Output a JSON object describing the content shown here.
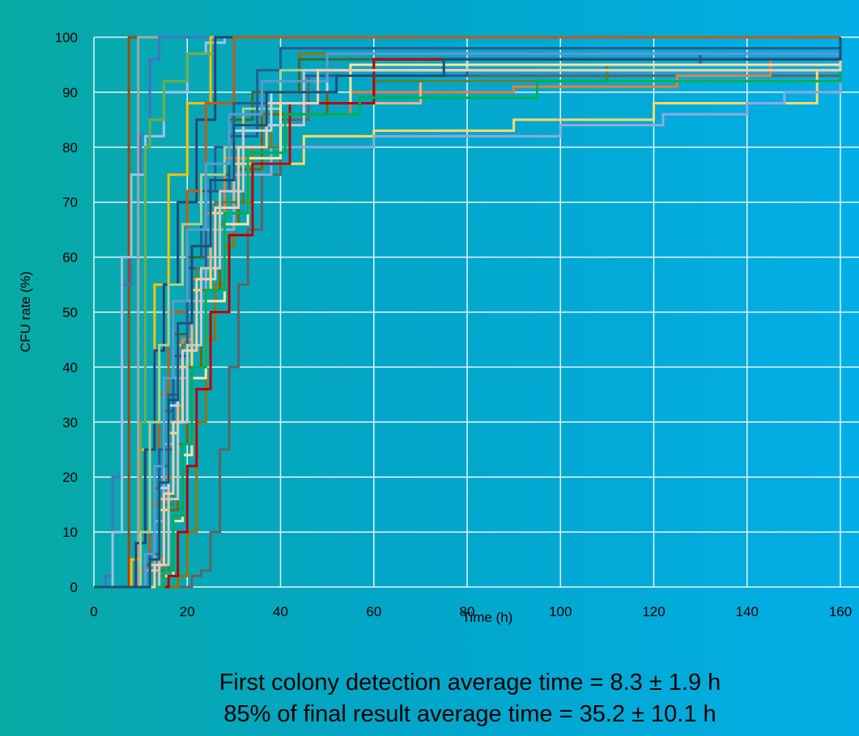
{
  "chart_data": {
    "type": "line",
    "title": "",
    "xlabel": "Time (h)",
    "ylabel": "CFU rate (%)",
    "xlim": [
      0,
      160
    ],
    "ylim": [
      0,
      100
    ],
    "xticks": [
      0,
      20,
      40,
      60,
      80,
      100,
      120,
      140,
      160
    ],
    "yticks": [
      0,
      10,
      20,
      30,
      40,
      50,
      60,
      70,
      80,
      90,
      100
    ],
    "xtick_labels": [
      "0",
      "20",
      "40",
      "60",
      "80",
      "100",
      "120",
      "140",
      "160"
    ],
    "ytick_labels": [
      "0",
      "10",
      "20",
      "30",
      "40",
      "50",
      "60",
      "70",
      "80",
      "90",
      "100"
    ],
    "grid": true,
    "legend": "none",
    "series": [
      {
        "color": "#9e480e",
        "x": [
          0,
          7,
          7.5,
          160
        ],
        "y": [
          0,
          0,
          100,
          100
        ]
      },
      {
        "color": "#a5a5a5",
        "x": [
          0,
          9,
          9.5,
          160
        ],
        "y": [
          0,
          0,
          100,
          100
        ]
      },
      {
        "color": "#4472c4",
        "x": [
          0,
          2.5,
          4,
          6,
          8,
          10,
          12,
          14,
          160
        ],
        "y": [
          0,
          2,
          20,
          55,
          75,
          82,
          96,
          100,
          100
        ]
      },
      {
        "color": "#9dc3e6",
        "x": [
          0,
          4,
          6,
          8,
          11,
          15,
          20,
          24,
          28,
          160
        ],
        "y": [
          0,
          10,
          60,
          75,
          82,
          90,
          97,
          99,
          100,
          100
        ]
      },
      {
        "color": "#ffc000",
        "x": [
          0,
          8,
          10,
          13,
          16,
          20,
          25,
          160
        ],
        "y": [
          0,
          5,
          25,
          55,
          75,
          88,
          100,
          100
        ]
      },
      {
        "color": "#70ad47",
        "x": [
          0,
          10,
          11,
          12,
          15,
          20,
          26,
          160
        ],
        "y": [
          0,
          30,
          80,
          85,
          92,
          97,
          100,
          100
        ]
      },
      {
        "color": "#264478",
        "x": [
          0,
          9,
          11,
          13,
          15,
          18,
          22,
          26,
          160
        ],
        "y": [
          0,
          8,
          25,
          43,
          55,
          70,
          85,
          100,
          100
        ]
      },
      {
        "color": "#c55a11",
        "x": [
          0,
          10,
          12,
          14,
          16,
          20,
          24,
          30,
          160
        ],
        "y": [
          0,
          3,
          15,
          35,
          50,
          72,
          88,
          100,
          100
        ]
      },
      {
        "color": "#636363",
        "x": [
          0,
          19,
          21,
          23,
          25,
          27,
          29,
          31,
          33,
          36,
          40,
          46,
          160
        ],
        "y": [
          0,
          0,
          2,
          3,
          10,
          25,
          40,
          55,
          65,
          75,
          85,
          93,
          100
        ]
      },
      {
        "color": "#997300",
        "x": [
          0,
          18,
          20,
          22,
          24,
          26,
          28,
          30,
          34,
          38,
          44,
          160
        ],
        "y": [
          0,
          2,
          10,
          30,
          45,
          55,
          62,
          70,
          80,
          90,
          97,
          100
        ]
      },
      {
        "color": "#255e91",
        "x": [
          0,
          12,
          14,
          16,
          18,
          20,
          23,
          26,
          30,
          35,
          40,
          160
        ],
        "y": [
          0,
          5,
          22,
          35,
          48,
          60,
          72,
          80,
          88,
          94,
          98,
          100
        ]
      },
      {
        "color": "#43682b",
        "x": [
          0,
          11,
          13,
          15,
          17,
          20,
          24,
          29,
          34,
          44,
          160
        ],
        "y": [
          0,
          4,
          18,
          32,
          46,
          60,
          75,
          85,
          90,
          96,
          100
        ]
      },
      {
        "color": "#ed7d31",
        "x": [
          0,
          13,
          15,
          17,
          19,
          21,
          24,
          28,
          36,
          55,
          90,
          125,
          145,
          160
        ],
        "y": [
          0,
          5,
          20,
          33,
          45,
          56,
          68,
          78,
          86,
          90,
          91,
          93,
          96,
          96
        ]
      },
      {
        "color": "#ffd966",
        "x": [
          0,
          12,
          14,
          16,
          18,
          21,
          25,
          30,
          45,
          60,
          90,
          120,
          155,
          160
        ],
        "y": [
          0,
          4,
          14,
          28,
          40,
          54,
          68,
          77,
          82,
          83,
          85,
          88,
          94,
          100
        ]
      },
      {
        "color": "#a9d18e",
        "x": [
          0,
          10,
          12,
          14,
          16,
          19,
          23,
          28,
          32,
          40,
          160
        ],
        "y": [
          0,
          10,
          30,
          44,
          55,
          66,
          75,
          80,
          87,
          94,
          100
        ]
      },
      {
        "color": "#8faadc",
        "x": [
          0,
          11,
          13,
          15,
          17,
          20,
          24,
          30,
          38,
          60,
          100,
          115,
          122,
          140,
          148,
          160
        ],
        "y": [
          0,
          3,
          12,
          26,
          38,
          52,
          65,
          75,
          80,
          82,
          84,
          84,
          86,
          88,
          90,
          100
        ]
      },
      {
        "color": "#f4b183",
        "x": [
          0,
          12,
          14,
          16,
          18,
          21,
          25,
          30,
          40,
          70,
          160
        ],
        "y": [
          0,
          3,
          16,
          30,
          44,
          58,
          70,
          80,
          88,
          92,
          100
        ]
      },
      {
        "color": "#2f5597",
        "x": [
          0,
          12,
          14,
          17,
          20,
          24,
          29,
          35,
          45,
          80,
          130,
          160
        ],
        "y": [
          0,
          6,
          25,
          42,
          58,
          72,
          82,
          88,
          93,
          95,
          97,
          100
        ]
      },
      {
        "color": "#7f6000",
        "x": [
          0,
          14,
          16,
          18,
          20,
          23,
          27,
          31,
          36,
          50,
          160
        ],
        "y": [
          0,
          3,
          14,
          26,
          40,
          54,
          66,
          76,
          86,
          94,
          100
        ]
      },
      {
        "color": "#548235",
        "x": [
          0,
          13,
          15,
          17,
          19,
          22,
          26,
          32,
          40,
          60,
          110,
          160
        ],
        "y": [
          0,
          2,
          15,
          30,
          44,
          58,
          70,
          80,
          88,
          92,
          95,
          100
        ]
      },
      {
        "color": "#bdd7ee",
        "x": [
          0,
          12,
          14,
          16,
          18,
          21,
          25,
          30,
          38,
          50,
          80,
          160
        ],
        "y": [
          0,
          5,
          18,
          33,
          48,
          62,
          74,
          83,
          90,
          94,
          96,
          100
        ]
      },
      {
        "color": "#ffe699",
        "x": [
          0,
          15,
          17,
          19,
          21,
          24,
          28,
          33,
          40,
          55,
          160
        ],
        "y": [
          0,
          2,
          12,
          24,
          38,
          52,
          66,
          78,
          88,
          95,
          100
        ]
      },
      {
        "color": "#c9c9c9",
        "x": [
          0,
          14,
          16,
          18,
          20,
          23,
          27,
          32,
          45,
          160
        ],
        "y": [
          0,
          4,
          16,
          30,
          44,
          58,
          72,
          84,
          94,
          100
        ]
      },
      {
        "color": "#5b9bd5",
        "x": [
          0,
          11,
          13,
          15,
          17,
          20,
          24,
          29,
          36,
          50,
          160
        ],
        "y": [
          0,
          6,
          22,
          38,
          52,
          65,
          77,
          86,
          92,
          97,
          100
        ]
      },
      {
        "color": "#c00000",
        "x": [
          0,
          16,
          18,
          20,
          22,
          25,
          29,
          34,
          42,
          60,
          160
        ],
        "y": [
          0,
          2,
          10,
          22,
          36,
          50,
          64,
          77,
          88,
          96,
          100
        ]
      },
      {
        "color": "#00b050",
        "x": [
          0,
          15,
          17,
          19,
          21,
          24,
          28,
          33,
          41,
          57,
          95,
          160
        ],
        "y": [
          0,
          3,
          13,
          26,
          40,
          54,
          68,
          79,
          86,
          89,
          92,
          100
        ]
      },
      {
        "color": "#f8cbad",
        "x": [
          0,
          13,
          15,
          17,
          19,
          22,
          26,
          31,
          37,
          48,
          160
        ],
        "y": [
          0,
          4,
          17,
          30,
          43,
          56,
          69,
          80,
          88,
          94,
          100
        ]
      },
      {
        "color": "#1f4e79",
        "x": [
          0,
          12,
          14,
          16,
          18,
          21,
          25,
          30,
          37,
          52,
          75,
          160
        ],
        "y": [
          0,
          5,
          19,
          34,
          48,
          62,
          74,
          84,
          90,
          93,
          96,
          100
        ]
      }
    ]
  },
  "caption": {
    "line1": "First colony detection average time = 8.3 ± 1.9 h",
    "line2": "85% of final result average time = 35.2 ± 10.1 h"
  }
}
